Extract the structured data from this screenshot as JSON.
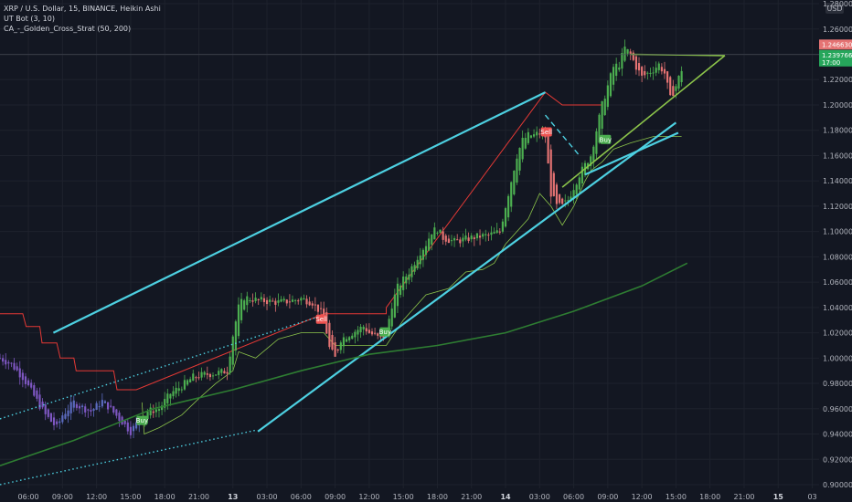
{
  "legend": {
    "line1": "XRP / U.S. Dollar, 15, BINANCE, Heikin Ashi",
    "line2": "UT Bot (3, 10)",
    "line3": "CA_-_Golden_Cross_Strat (50, 200)"
  },
  "currency": "USD",
  "price_tags": {
    "red": "1.24663097",
    "green_price": "1.23976634",
    "green_timer": "17:00"
  },
  "colors": {
    "bg": "#131722",
    "grid": "#1e222d",
    "up": "#26a69a",
    "down": "#ef5350",
    "up_candle": "#4caf50",
    "down_candle": "#e57373",
    "cyan": "#4dd0e1",
    "ma200": "#2e7d32",
    "trail_red": "#e53935",
    "trail_green": "#8bc34a",
    "purple": "#7e57c2",
    "buy": "#4caf50",
    "sell": "#ef5350"
  },
  "chart_data": {
    "type": "candlestick",
    "symbol": "XRP / U.S. Dollar",
    "interval": "15",
    "exchange": "BINANCE",
    "style": "Heikin Ashi",
    "ylim": [
      0.9,
      1.28
    ],
    "y_ticks": [
      "1.28000000",
      "1.26000000",
      "1.24000000",
      "1.22000000",
      "1.20000000",
      "1.18000000",
      "1.16000000",
      "1.14000000",
      "1.12000000",
      "1.10000000",
      "1.08000000",
      "1.06000000",
      "1.04000000",
      "1.02000000",
      "1.00000000",
      "0.98000000",
      "0.96000000",
      "0.94000000",
      "0.92000000",
      "0.90000000"
    ],
    "x_ticks": [
      {
        "label": "06:00",
        "t": 6
      },
      {
        "label": "09:00",
        "t": 9
      },
      {
        "label": "12:00",
        "t": 12
      },
      {
        "label": "15:00",
        "t": 15
      },
      {
        "label": "18:00",
        "t": 18
      },
      {
        "label": "21:00",
        "t": 21
      },
      {
        "label": "13",
        "t": 24,
        "bold": true
      },
      {
        "label": "03:00",
        "t": 27
      },
      {
        "label": "06:00",
        "t": 30
      },
      {
        "label": "09:00",
        "t": 33
      },
      {
        "label": "12:00",
        "t": 36
      },
      {
        "label": "15:00",
        "t": 39
      },
      {
        "label": "18:00",
        "t": 42
      },
      {
        "label": "21:00",
        "t": 45
      },
      {
        "label": "14",
        "t": 48,
        "bold": true
      },
      {
        "label": "03:00",
        "t": 51
      },
      {
        "label": "06:00",
        "t": 54
      },
      {
        "label": "09:00",
        "t": 57
      },
      {
        "label": "12:00",
        "t": 60
      },
      {
        "label": "15:00",
        "t": 63
      },
      {
        "label": "18:00",
        "t": 66
      },
      {
        "label": "21:00",
        "t": 69
      },
      {
        "label": "15",
        "t": 72,
        "bold": true
      },
      {
        "label": "03",
        "t": 75
      }
    ],
    "x_range": [
      3.5,
      75.6
    ],
    "last_bar_t": 63,
    "price_path": [
      [
        3.5,
        1.0
      ],
      [
        4.5,
        0.995
      ],
      [
        5.5,
        0.985
      ],
      [
        6.5,
        0.97
      ],
      [
        7.5,
        0.955
      ],
      [
        8.5,
        0.945
      ],
      [
        9.0,
        0.955
      ],
      [
        10.0,
        0.965
      ],
      [
        10.5,
        0.962
      ],
      [
        11.5,
        0.958
      ],
      [
        12.5,
        0.966
      ],
      [
        13.0,
        0.962
      ],
      [
        14.0,
        0.952
      ],
      [
        15.0,
        0.942
      ],
      [
        15.5,
        0.948
      ],
      [
        16.5,
        0.958
      ],
      [
        17.5,
        0.96
      ],
      [
        18.5,
        0.972
      ],
      [
        19.5,
        0.978
      ],
      [
        20.5,
        0.985
      ],
      [
        21.5,
        0.987
      ],
      [
        22.5,
        0.988
      ],
      [
        23.5,
        0.99
      ],
      [
        24.0,
        1.018
      ],
      [
        24.5,
        1.04
      ],
      [
        25.0,
        1.048
      ],
      [
        26.0,
        1.046
      ],
      [
        27.0,
        1.045
      ],
      [
        28.0,
        1.044
      ],
      [
        29.0,
        1.045
      ],
      [
        30.0,
        1.047
      ],
      [
        31.0,
        1.044
      ],
      [
        32.0,
        1.033
      ],
      [
        32.5,
        1.008
      ],
      [
        33.0,
        1.0
      ],
      [
        33.5,
        1.015
      ],
      [
        34.5,
        1.02
      ],
      [
        35.5,
        1.025
      ],
      [
        36.0,
        1.02
      ],
      [
        37.0,
        1.015
      ],
      [
        37.5,
        1.02
      ],
      [
        38.0,
        1.042
      ],
      [
        38.5,
        1.056
      ],
      [
        39.5,
        1.068
      ],
      [
        40.5,
        1.084
      ],
      [
        41.0,
        1.09
      ],
      [
        41.5,
        1.1
      ],
      [
        42.0,
        1.102
      ],
      [
        42.5,
        1.095
      ],
      [
        43.5,
        1.092
      ],
      [
        44.5,
        1.094
      ],
      [
        45.5,
        1.096
      ],
      [
        46.5,
        1.097
      ],
      [
        47.5,
        1.1
      ],
      [
        48.0,
        1.12
      ],
      [
        48.5,
        1.14
      ],
      [
        49.0,
        1.16
      ],
      [
        49.5,
        1.172
      ],
      [
        50.0,
        1.176
      ],
      [
        50.5,
        1.176
      ],
      [
        51.0,
        1.178
      ],
      [
        51.5,
        1.175
      ],
      [
        52.0,
        1.13
      ],
      [
        52.5,
        1.12
      ],
      [
        53.0,
        1.12
      ],
      [
        53.5,
        1.125
      ],
      [
        54.0,
        1.135
      ],
      [
        54.5,
        1.145
      ],
      [
        55.5,
        1.16
      ],
      [
        56.0,
        1.18
      ],
      [
        56.5,
        1.2
      ],
      [
        57.0,
        1.215
      ],
      [
        57.5,
        1.23
      ],
      [
        58.0,
        1.232
      ],
      [
        58.5,
        1.245
      ],
      [
        59.0,
        1.24
      ],
      [
        59.5,
        1.23
      ],
      [
        60.0,
        1.222
      ],
      [
        60.5,
        1.225
      ],
      [
        61.0,
        1.228
      ],
      [
        61.5,
        1.232
      ],
      [
        62.0,
        1.225
      ],
      [
        62.5,
        1.205
      ],
      [
        63.0,
        1.215
      ],
      [
        63.5,
        1.228
      ],
      [
        63.7,
        1.24
      ]
    ],
    "series": [
      {
        "name": "trend-line-upper-cyan",
        "style": "solid",
        "color": "cyan",
        "points": [
          [
            8.2,
            1.02
          ],
          [
            51.5,
            1.21
          ]
        ]
      },
      {
        "name": "trend-line-lower-cyan",
        "style": "solid",
        "color": "cyan",
        "points": [
          [
            26.2,
            0.942
          ],
          [
            63.0,
            1.186
          ]
        ]
      },
      {
        "name": "trend-line-lower-cyan-2",
        "style": "solid",
        "color": "cyan",
        "points": [
          [
            55.0,
            1.145
          ],
          [
            63.2,
            1.178
          ]
        ]
      },
      {
        "name": "trend-line-dashed-cyan",
        "style": "dashed",
        "color": "cyan",
        "points": [
          [
            51.5,
            1.192
          ],
          [
            54.5,
            1.16
          ]
        ]
      },
      {
        "name": "channel-top-dotted",
        "style": "dotted",
        "color": "cyan",
        "points": [
          [
            3.5,
            0.952
          ],
          [
            32.0,
            1.034
          ]
        ]
      },
      {
        "name": "channel-bottom-dotted",
        "style": "dotted",
        "color": "cyan",
        "points": [
          [
            3.5,
            0.9
          ],
          [
            26.0,
            0.943
          ]
        ]
      },
      {
        "name": "wedge-upper-green",
        "style": "solid",
        "color": "trail_green",
        "points": [
          [
            59.0,
            1.24
          ],
          [
            67.3,
            1.239
          ]
        ]
      },
      {
        "name": "wedge-lower-green",
        "style": "solid",
        "color": "trail_green",
        "points": [
          [
            53.0,
            1.135
          ],
          [
            67.3,
            1.239
          ]
        ]
      },
      {
        "name": "ma200",
        "style": "solid",
        "color": "ma200",
        "points": [
          [
            3.5,
            0.915
          ],
          [
            10,
            0.935
          ],
          [
            17,
            0.96
          ],
          [
            24,
            0.975
          ],
          [
            30,
            0.99
          ],
          [
            36,
            1.003
          ],
          [
            42,
            1.01
          ],
          [
            48,
            1.02
          ],
          [
            54,
            1.037
          ],
          [
            60,
            1.057
          ],
          [
            64,
            1.075
          ]
        ]
      }
    ],
    "ut_trail_red": [
      [
        3.5,
        1.035
      ],
      [
        5.5,
        1.035
      ],
      [
        5.8,
        1.025
      ],
      [
        7.0,
        1.025
      ],
      [
        7.2,
        1.012
      ],
      [
        8.5,
        1.012
      ],
      [
        8.8,
        1.0
      ],
      [
        10.0,
        1.0
      ],
      [
        10.2,
        0.99
      ],
      [
        13.5,
        0.99
      ],
      [
        13.8,
        0.975
      ],
      [
        15.5,
        0.975
      ],
      [
        32.0,
        1.035
      ],
      [
        37.5,
        1.035
      ],
      [
        37.5,
        1.04
      ],
      [
        51.5,
        1.21
      ],
      [
        53.0,
        1.2
      ],
      [
        56.5,
        1.2
      ]
    ],
    "ut_trail_green": [
      [
        16.0,
        0.965
      ],
      [
        16.2,
        0.94
      ],
      [
        17.5,
        0.945
      ],
      [
        19.5,
        0.955
      ],
      [
        21.0,
        0.968
      ],
      [
        22.5,
        0.98
      ],
      [
        24.0,
        0.99
      ],
      [
        24.5,
        1.005
      ],
      [
        26.0,
        1.0
      ],
      [
        28.0,
        1.015
      ],
      [
        30.0,
        1.02
      ],
      [
        32.0,
        1.02
      ],
      [
        33.0,
        1.01
      ],
      [
        37.0,
        1.01
      ],
      [
        37.5,
        1.01
      ],
      [
        39.0,
        1.03
      ],
      [
        41.0,
        1.05
      ],
      [
        43.0,
        1.055
      ],
      [
        44.5,
        1.068
      ],
      [
        46.0,
        1.07
      ],
      [
        47.0,
        1.075
      ],
      [
        48.0,
        1.09
      ],
      [
        50.0,
        1.11
      ],
      [
        51.0,
        1.13
      ],
      [
        52.0,
        1.12
      ],
      [
        53.0,
        1.105
      ],
      [
        54.0,
        1.12
      ],
      [
        55.0,
        1.14
      ],
      [
        55.5,
        1.148
      ],
      [
        56.5,
        1.155
      ],
      [
        57.5,
        1.165
      ],
      [
        59.0,
        1.17
      ],
      [
        61.0,
        1.175
      ],
      [
        63.5,
        1.175
      ]
    ],
    "signals": [
      {
        "label": "Buy",
        "type": "buy",
        "t": 16.0,
        "price": 0.95
      },
      {
        "label": "Sell",
        "type": "sell",
        "t": 31.8,
        "price": 1.03
      },
      {
        "label": "Buy",
        "type": "buy",
        "t": 37.4,
        "price": 1.02
      },
      {
        "label": "Sell",
        "type": "sell",
        "t": 51.6,
        "price": 1.178
      },
      {
        "label": "Buy",
        "type": "buy",
        "t": 56.8,
        "price": 1.172
      }
    ],
    "last_price": 1.23976634,
    "prev_close": 1.24663097
  }
}
